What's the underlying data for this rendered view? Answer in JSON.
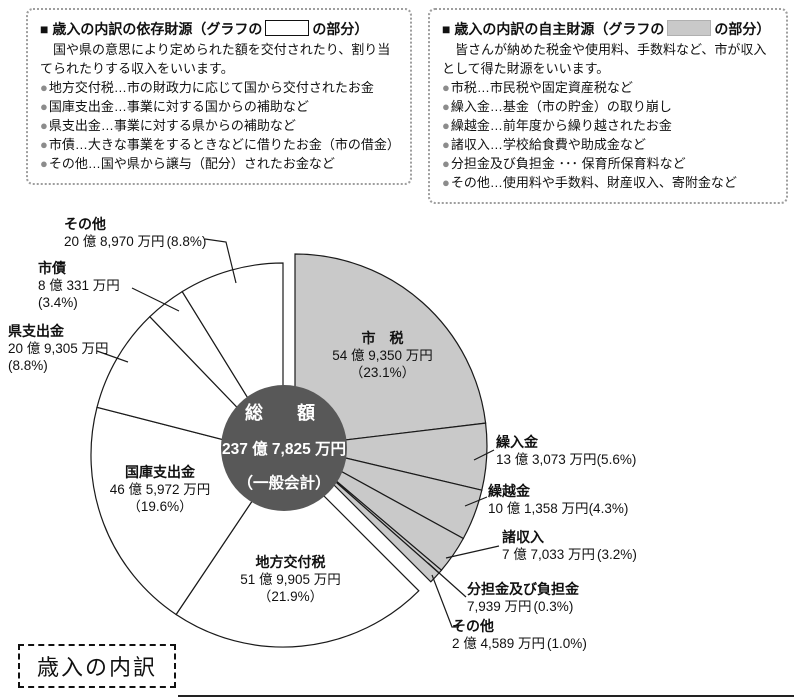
{
  "boxes": {
    "dependent": {
      "heading": "■ 歳入の内訳の依存財源",
      "graph_note_pre": "（グラフの",
      "graph_note_post": "の部分）",
      "body": "国や県の意思により定められた額を交付されたり、割り当てられたりする収入をいいます。",
      "bullet_char": "●",
      "items": [
        "地方交付税…市の財政力に応じて国から交付されたお金",
        "国庫支出金…事業に対する国からの補助など",
        "県支出金…事業に対する県からの補助など",
        "市債…大きな事業をするときなどに借りたお金（市の借金）",
        "その他…国や県から譲与（配分）されたお金など"
      ]
    },
    "independent": {
      "heading": "■ 歳入の内訳の自主財源",
      "graph_note_pre": "（グラフの",
      "graph_note_post": "の部分）",
      "body": "皆さんが納めた税金や使用料、手数料など、市が収入として得た財源をいいます。",
      "bullet_char": "●",
      "items": [
        "市税…市民税や固定資産税など",
        "繰入金…基金（市の貯金）の取り崩し",
        "繰越金…前年度から繰り越されたお金",
        "諸収入…学校給食費や助成金など",
        "分担金及び負担金 ･･･ 保育所保育料など",
        "その他…使用料や手数料、財産収入、寄附金など"
      ]
    }
  },
  "caption_box": {
    "label": "歳入の内訳"
  },
  "chart_data": {
    "type": "pie",
    "title": "歳入の内訳",
    "direction": "clockwise",
    "start_angle_deg": 0,
    "center_label": {
      "line1": "総　額",
      "line2": "237 億 7,825 万円",
      "line3": "（一般会計）"
    },
    "colors": {
      "independent_fill": "#c9c9c9",
      "dependent_fill": "#ffffff",
      "outline": "#1a1a1a",
      "center_circle": "#585858",
      "center_text": "#ffffff"
    },
    "slices": [
      {
        "key": "shizei",
        "name": "市　税",
        "amount": "54 億 9,350 万円",
        "pct_label": "（23.1%）",
        "pct": 23.1,
        "group": "independent"
      },
      {
        "key": "kuriirekin",
        "name": "繰入金",
        "amount": "13 億 3,073 万円",
        "pct_label": "(5.6%)",
        "pct": 5.6,
        "group": "independent"
      },
      {
        "key": "kurikoshikin",
        "name": "繰越金",
        "amount": "10 億 1,358 万円",
        "pct_label": "(4.3%)",
        "pct": 4.3,
        "group": "independent"
      },
      {
        "key": "shoshunyu",
        "name": "諸収入",
        "amount": "7 億 7,033 万円",
        "pct_label": "(3.2%)",
        "pct": 3.2,
        "group": "independent"
      },
      {
        "key": "buntankin",
        "name": "分担金及び負担金",
        "amount": "7,939 万円",
        "pct_label": "(0.3%)",
        "pct": 0.3,
        "group": "independent"
      },
      {
        "key": "sonota-jishu",
        "name": "その他",
        "amount": "2 億 4,589 万円",
        "pct_label": "(1.0%)",
        "pct": 1.0,
        "group": "independent"
      },
      {
        "key": "chihokofuzei",
        "name": "地方交付税",
        "amount": "51 億 9,905 万円",
        "pct_label": "（21.9%）",
        "pct": 21.9,
        "group": "dependent"
      },
      {
        "key": "kokkoshishutsukin",
        "name": "国庫支出金",
        "amount": "46 億 5,972 万円",
        "pct_label": "（19.6%）",
        "pct": 19.6,
        "group": "dependent"
      },
      {
        "key": "kenshishutsukin",
        "name": "県支出金",
        "amount": "20 億 9,305 万円",
        "pct_label": "(8.8%)",
        "pct": 8.8,
        "group": "dependent"
      },
      {
        "key": "shisai",
        "name": "市債",
        "amount": "8 億 331 万円",
        "pct_label": "(3.4%)",
        "pct": 3.4,
        "group": "dependent"
      },
      {
        "key": "sonota-izon",
        "name": "その他",
        "amount": "20 億 8,970 万円",
        "pct_label": "(8.8%)",
        "pct": 8.8,
        "group": "dependent"
      }
    ]
  }
}
